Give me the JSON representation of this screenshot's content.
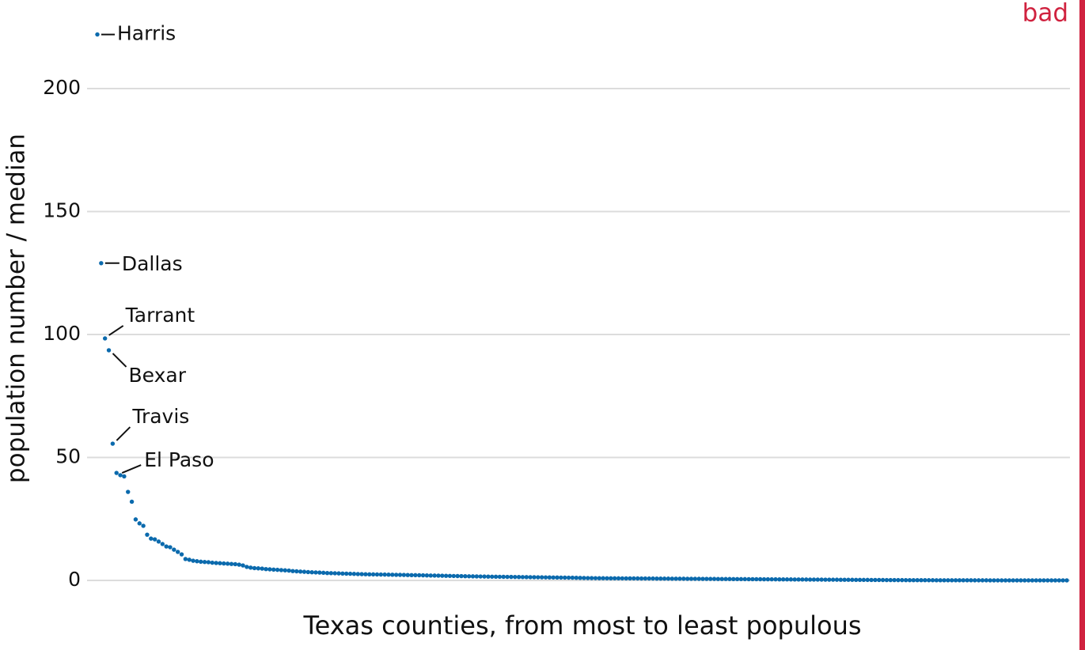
{
  "chart_data": {
    "type": "scatter",
    "tag": "bad",
    "tag_color": "#d0223f",
    "x_label": "Texas counties, from most to least populous",
    "y_label": "population number / median",
    "color": "#0b6aad",
    "ylim": [
      0,
      230
    ],
    "yticks": [
      0,
      50,
      100,
      150,
      200
    ],
    "grid": true,
    "values": [
      222,
      129,
      98.4,
      93.6,
      55.6,
      43.7,
      42.8,
      42.3,
      36,
      32,
      24.8,
      23.2,
      22.2,
      18.6,
      17,
      16.7,
      15.8,
      14.8,
      13.8,
      13.5,
      12.5,
      11.6,
      10.6,
      8.7,
      8.4,
      8.0,
      7.8,
      7.6,
      7.5,
      7.4,
      7.2,
      7.1,
      7.0,
      6.9,
      6.8,
      6.7,
      6.6,
      6.4,
      6.1,
      5.5,
      5.2,
      5.0,
      4.9,
      4.8,
      4.6,
      4.5,
      4.4,
      4.3,
      4.2,
      4.1,
      4.0,
      3.8,
      3.7,
      3.6,
      3.5,
      3.4,
      3.3,
      3.25,
      3.2,
      3.1,
      3.0,
      2.95,
      2.9,
      2.85,
      2.8,
      2.75,
      2.7,
      2.65,
      2.6,
      2.55,
      2.5,
      2.48,
      2.45,
      2.42,
      2.4,
      2.37,
      2.34,
      2.31,
      2.28,
      2.25,
      2.22,
      2.19,
      2.16,
      2.13,
      2.1,
      2.07,
      2.04,
      2.0,
      1.97,
      1.94,
      1.9,
      1.87,
      1.84,
      1.8,
      1.77,
      1.74,
      1.71,
      1.68,
      1.65,
      1.62,
      1.6,
      1.57,
      1.55,
      1.52,
      1.5,
      1.48,
      1.46,
      1.44,
      1.42,
      1.4,
      1.38,
      1.36,
      1.34,
      1.32,
      1.3,
      1.28,
      1.26,
      1.24,
      1.22,
      1.2,
      1.18,
      1.16,
      1.14,
      1.12,
      1.1,
      1.06,
      1.02,
      0.98,
      0.96,
      0.94,
      0.92,
      0.9,
      0.89,
      0.88,
      0.87,
      0.86,
      0.85,
      0.84,
      0.83,
      0.82,
      0.81,
      0.8,
      0.79,
      0.78,
      0.77,
      0.76,
      0.75,
      0.74,
      0.73,
      0.72,
      0.71,
      0.7,
      0.69,
      0.68,
      0.67,
      0.66,
      0.65,
      0.64,
      0.63,
      0.62,
      0.61,
      0.6,
      0.59,
      0.58,
      0.57,
      0.56,
      0.55,
      0.54,
      0.53,
      0.52,
      0.51,
      0.5,
      0.49,
      0.48,
      0.47,
      0.46,
      0.45,
      0.44,
      0.43,
      0.42,
      0.41,
      0.4,
      0.39,
      0.38,
      0.37,
      0.36,
      0.35,
      0.34,
      0.33,
      0.32,
      0.31,
      0.3,
      0.29,
      0.28,
      0.27,
      0.26,
      0.25,
      0.24,
      0.23,
      0.22,
      0.21,
      0.2,
      0.19,
      0.18,
      0.17,
      0.16,
      0.15,
      0.14,
      0.13,
      0.12,
      0.12,
      0.11,
      0.11,
      0.1,
      0.1,
      0.09,
      0.09,
      0.08,
      0.08,
      0.07,
      0.07,
      0.07,
      0.06,
      0.06,
      0.06,
      0.05,
      0.05,
      0.05,
      0.05,
      0.04,
      0.04,
      0.04,
      0.04,
      0.03,
      0.03,
      0.03,
      0.03,
      0.03,
      0.02,
      0.02,
      0.02,
      0.02,
      0.02,
      0.02,
      0.02,
      0.01,
      0.01,
      0.01,
      0.01,
      0.01,
      0.01,
      0.01,
      0.01,
      0.01
    ],
    "annotations": [
      {
        "index": 0,
        "label": "Harris"
      },
      {
        "index": 1,
        "label": "Dallas"
      },
      {
        "index": 2,
        "label": "Tarrant"
      },
      {
        "index": 3,
        "label": "Bexar"
      },
      {
        "index": 4,
        "label": "Travis"
      },
      {
        "index": 5,
        "label": "El Paso"
      }
    ]
  }
}
